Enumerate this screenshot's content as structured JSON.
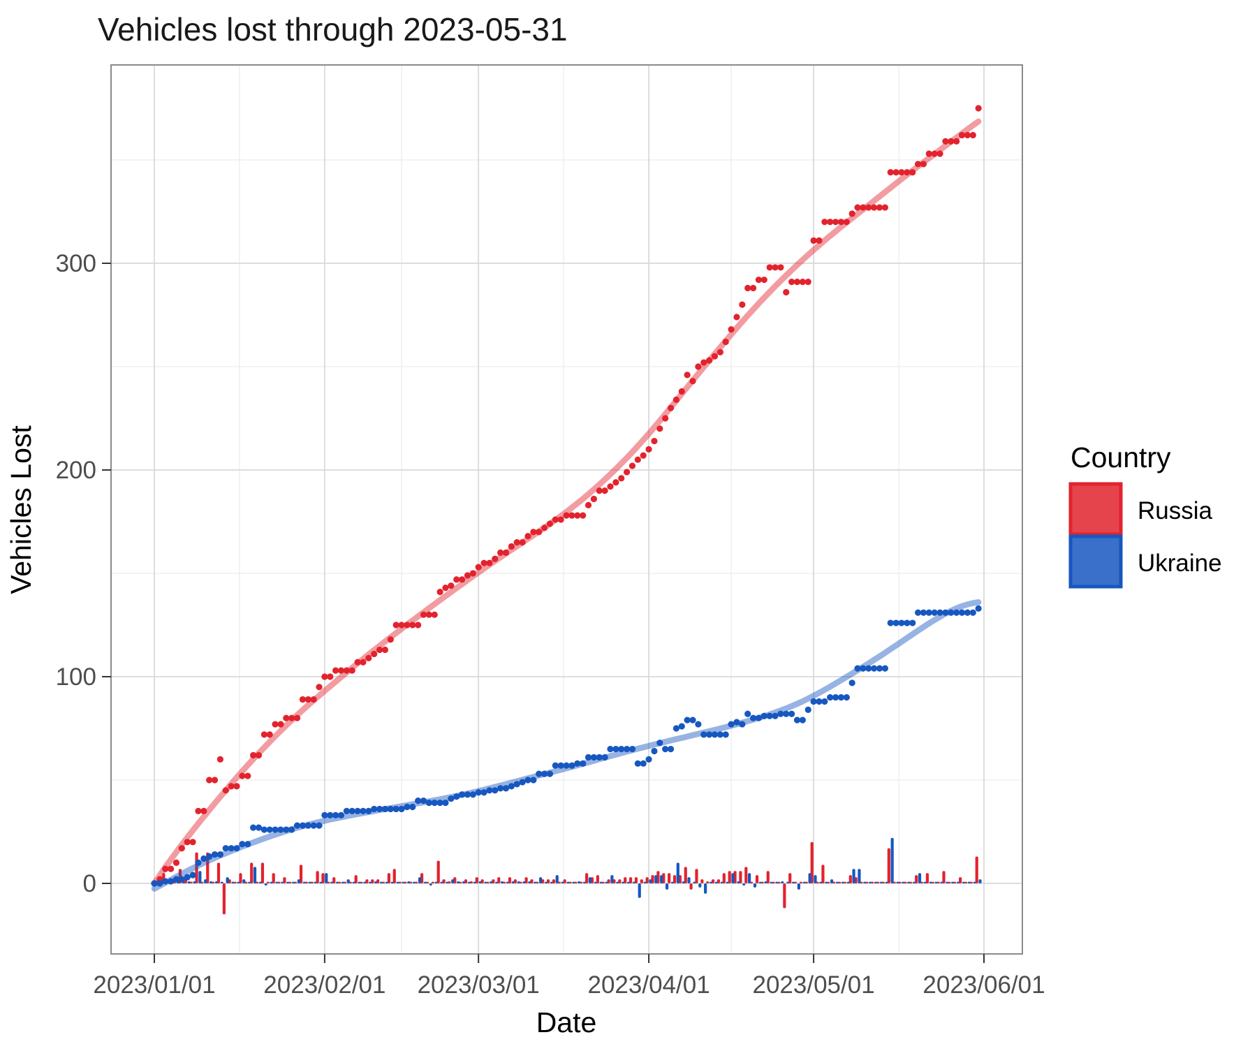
{
  "title": "Vehicles lost through 2023-05-31",
  "axes": {
    "x_label": "Date",
    "y_label": "Vehicles Lost",
    "x_tick_labels": [
      "2023/01/01",
      "2023/02/01",
      "2023/03/01",
      "2023/04/01",
      "2023/05/01",
      "2023/06/01"
    ],
    "y_tick_labels": [
      "0",
      "100",
      "200",
      "300"
    ]
  },
  "legend": {
    "title": "Country",
    "items": [
      {
        "label": "Russia",
        "color": "#E2232E"
      },
      {
        "label": "Ukraine",
        "color": "#1757C0"
      }
    ]
  },
  "chart_data": {
    "type": "scatter",
    "subtype": "cumulative dots + loess smooth lines + daily-change bars",
    "title": "Vehicles lost through 2023-05-31",
    "xlabel": "Date",
    "ylabel": "Vehicles Lost",
    "x_start_date": "2023-01-01",
    "x_end_date": "2023-05-31",
    "x_tick_labels": [
      "2023/01/01",
      "2023/02/01",
      "2023/03/01",
      "2023/04/01",
      "2023/05/01",
      "2023/06/01"
    ],
    "y_ticks": [
      0,
      100,
      200,
      300
    ],
    "y_minor_ticks": [
      50,
      150,
      250,
      350
    ],
    "ylim": [
      -34,
      396
    ],
    "grid": "major+minor, light gray on white, gray panel border",
    "legend_position": "right",
    "bars_meaning": "daily change = difference of consecutive cumulative values (negatives are corrections)",
    "series": [
      {
        "name": "Russia",
        "color": "#E2232E",
        "smooth_color": "rgba(226,35,46,0.45)",
        "cumulative": [
          0,
          2,
          7,
          7,
          10,
          17,
          20,
          20,
          35,
          35,
          50,
          50,
          60,
          45,
          47,
          47,
          52,
          52,
          62,
          62,
          72,
          72,
          77,
          77,
          80,
          80,
          80,
          89,
          89,
          89,
          95,
          100,
          100,
          103,
          103,
          103,
          103,
          107,
          107,
          109,
          111,
          113,
          113,
          118,
          125,
          125,
          125,
          125,
          125,
          130,
          130,
          130,
          141,
          143,
          144,
          147,
          147,
          149,
          150,
          153,
          155,
          155,
          157,
          160,
          160,
          163,
          165,
          165,
          168,
          170,
          170,
          172,
          174,
          176,
          176,
          178,
          178,
          178,
          178,
          183,
          186,
          190,
          190,
          192,
          194,
          196,
          199,
          202,
          205,
          207,
          210,
          214,
          220,
          225,
          230,
          234,
          238,
          246,
          243,
          250,
          252,
          253,
          255,
          257,
          262,
          268,
          274,
          280,
          288,
          288,
          292,
          292,
          298,
          298,
          298,
          286,
          291,
          291,
          291,
          291,
          311,
          311,
          320,
          320,
          320,
          320,
          320,
          324,
          327,
          327,
          327,
          327,
          327,
          327,
          344,
          344,
          344,
          344,
          344,
          348,
          348,
          353,
          353,
          353,
          359,
          359,
          359,
          362,
          362,
          362,
          375
        ]
      },
      {
        "name": "Ukraine",
        "color": "#1757C0",
        "smooth_color": "rgba(23,87,192,0.45)",
        "cumulative": [
          0,
          0,
          1,
          1,
          2,
          2,
          3,
          4,
          10,
          12,
          13,
          14,
          14,
          17,
          17,
          17,
          19,
          19,
          27,
          27,
          26,
          26,
          26,
          26,
          26,
          26,
          28,
          28,
          28,
          28,
          28,
          33,
          33,
          33,
          33,
          35,
          35,
          35,
          35,
          35,
          36,
          36,
          36,
          36,
          36,
          36,
          37,
          37,
          40,
          40,
          39,
          39,
          39,
          39,
          41,
          42,
          43,
          43,
          43,
          44,
          44,
          45,
          45,
          46,
          46,
          47,
          48,
          49,
          50,
          50,
          53,
          53,
          53,
          57,
          57,
          57,
          57,
          58,
          58,
          61,
          61,
          61,
          61,
          65,
          65,
          65,
          65,
          65,
          58,
          58,
          60,
          64,
          68,
          65,
          65,
          75,
          76,
          79,
          79,
          77,
          72,
          72,
          72,
          72,
          72,
          77,
          78,
          77,
          82,
          80,
          80,
          81,
          81,
          81,
          82,
          82,
          82,
          79,
          79,
          84,
          88,
          88,
          88,
          90,
          90,
          90,
          90,
          97,
          104,
          104,
          104,
          104,
          104,
          104,
          126,
          126,
          126,
          126,
          126,
          131,
          131,
          131,
          131,
          131,
          131,
          131,
          131,
          131,
          131,
          131,
          133
        ]
      }
    ]
  }
}
